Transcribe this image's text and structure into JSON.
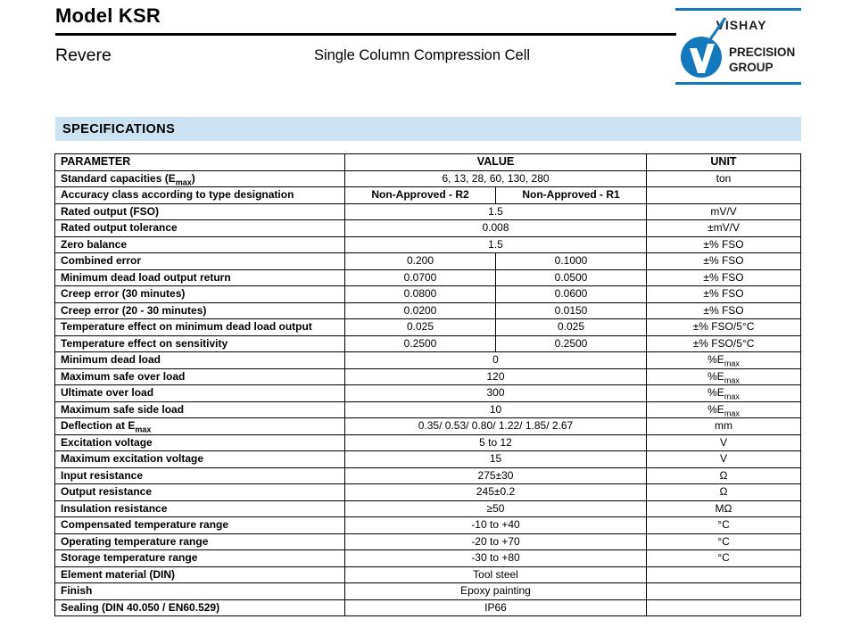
{
  "page": {
    "title": "Model KSR",
    "brand": "Revere",
    "subtitle": "Single Column Compression Cell"
  },
  "logo": {
    "line1": "VISHAY",
    "line2": "PRECISION",
    "line3": "GROUP",
    "blue": "#1478bd",
    "text_color": "#1d1d1b"
  },
  "section": {
    "title": "SPECIFICATIONS",
    "bar_bg": "#cde2f0"
  },
  "table": {
    "headers": [
      "PARAMETER",
      "VALUE",
      "UNIT"
    ],
    "rows": [
      {
        "param": "Standard capacities (E_{max})",
        "values": [
          "6, 13, 28, 60, 130, 280"
        ],
        "unit": "ton"
      },
      {
        "param": "Accuracy class according to type designation",
        "values": [
          "Non-Approved - R2",
          "Non-Approved - R1"
        ],
        "bold_values": true,
        "unit": ""
      },
      {
        "param": "Rated output (FSO)",
        "values": [
          "1.5"
        ],
        "unit": "mV/V"
      },
      {
        "param": "Rated output tolerance",
        "values": [
          "0.008"
        ],
        "unit": "±mV/V"
      },
      {
        "param": "Zero balance",
        "values": [
          "1.5"
        ],
        "unit": "±% FSO"
      },
      {
        "param": "Combined error",
        "values": [
          "0.200",
          "0.1000"
        ],
        "unit": "±% FSO"
      },
      {
        "param": "Minimum dead load output return",
        "values": [
          "0.0700",
          "0.0500"
        ],
        "unit": "±% FSO"
      },
      {
        "param": "Creep error (30 minutes)",
        "values": [
          "0.0800",
          "0.0600"
        ],
        "unit": "±% FSO"
      },
      {
        "param": "Creep error (20 - 30 minutes)",
        "values": [
          "0.0200",
          "0.0150"
        ],
        "unit": "±% FSO"
      },
      {
        "param": "Temperature effect on minimum dead load output",
        "values": [
          "0.025",
          "0.025"
        ],
        "unit": "±% FSO/5°C"
      },
      {
        "param": "Temperature effect on sensitivity",
        "values": [
          "0.2500",
          "0.2500"
        ],
        "unit": "±% FSO/5°C"
      },
      {
        "param": "Minimum dead load",
        "values": [
          "0"
        ],
        "unit": "%E_{max}"
      },
      {
        "param": "Maximum safe over load",
        "values": [
          "120"
        ],
        "unit": "%E_{max}"
      },
      {
        "param": "Ultimate over load",
        "values": [
          "300"
        ],
        "unit": "%E_{max}"
      },
      {
        "param": "Maximum safe side load",
        "values": [
          "10"
        ],
        "unit": "%E_{max}"
      },
      {
        "param": "Deflection at E_{max}",
        "values": [
          "0.35/ 0.53/ 0.80/ 1.22/ 1.85/ 2.67"
        ],
        "unit": "mm"
      },
      {
        "param": "Excitation voltage",
        "values": [
          "5 to 12"
        ],
        "unit": "V"
      },
      {
        "param": "Maximum excitation voltage",
        "values": [
          "15"
        ],
        "unit": "V"
      },
      {
        "param": "Input resistance",
        "values": [
          "275±30"
        ],
        "unit": "Ω"
      },
      {
        "param": "Output resistance",
        "values": [
          "245±0.2"
        ],
        "unit": "Ω"
      },
      {
        "param": "Insulation resistance",
        "values": [
          "≥50"
        ],
        "unit": "MΩ"
      },
      {
        "param": "Compensated temperature range",
        "values": [
          "-10 to +40"
        ],
        "unit": "°C"
      },
      {
        "param": "Operating temperature range",
        "values": [
          "-20 to +70"
        ],
        "unit": "°C"
      },
      {
        "param": "Storage temperature range",
        "values": [
          "-30 to +80"
        ],
        "unit": "°C"
      },
      {
        "param": "Element material (DIN)",
        "values": [
          "Tool steel"
        ],
        "unit": ""
      },
      {
        "param": "Finish",
        "values": [
          "Epoxy painting"
        ],
        "unit": ""
      },
      {
        "param": "Sealing (DIN 40.050 / EN60.529)",
        "values": [
          "IP66"
        ],
        "unit": ""
      }
    ]
  }
}
